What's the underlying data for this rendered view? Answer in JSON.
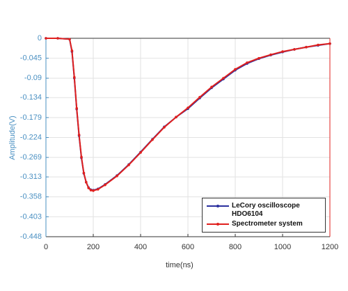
{
  "chart_data": {
    "type": "line",
    "xlabel": "time(ns)",
    "ylabel": "Amplitude(V)",
    "x": [
      0,
      50,
      100,
      110,
      120,
      130,
      140,
      150,
      160,
      170,
      180,
      190,
      200,
      220,
      250,
      300,
      350,
      400,
      450,
      500,
      550,
      600,
      650,
      700,
      750,
      800,
      850,
      900,
      950,
      1000,
      1050,
      1100,
      1150,
      1200
    ],
    "series": [
      {
        "name": "LeCory oscilloscope HDO6104",
        "color": "#2a2f9e",
        "values": [
          0,
          0,
          -0.002,
          -0.03,
          -0.09,
          -0.16,
          -0.22,
          -0.27,
          -0.305,
          -0.325,
          -0.337,
          -0.342,
          -0.343,
          -0.34,
          -0.33,
          -0.31,
          -0.285,
          -0.257,
          -0.228,
          -0.2,
          -0.178,
          -0.159,
          -0.135,
          -0.112,
          -0.092,
          -0.072,
          -0.057,
          -0.046,
          -0.038,
          -0.031,
          -0.025,
          -0.02,
          -0.016,
          -0.012
        ]
      },
      {
        "name": "Spectrometer system",
        "color": "#e0201e",
        "values": [
          0,
          0,
          -0.002,
          -0.028,
          -0.088,
          -0.158,
          -0.218,
          -0.268,
          -0.304,
          -0.325,
          -0.338,
          -0.343,
          -0.344,
          -0.341,
          -0.331,
          -0.311,
          -0.286,
          -0.258,
          -0.229,
          -0.201,
          -0.178,
          -0.157,
          -0.133,
          -0.11,
          -0.09,
          -0.07,
          -0.055,
          -0.045,
          -0.037,
          -0.03,
          -0.025,
          -0.02,
          -0.015,
          -0.012
        ]
      }
    ],
    "xlim": [
      0,
      1200
    ],
    "xticks": [
      0,
      200,
      400,
      600,
      800,
      1000,
      1200
    ],
    "ylim": [
      -0.448,
      0
    ],
    "yticks": [
      0,
      -0.045,
      -0.09,
      -0.134,
      -0.179,
      -0.224,
      -0.269,
      -0.313,
      -0.358,
      -0.403,
      -0.448
    ],
    "grid": true,
    "legend": "lower right"
  }
}
